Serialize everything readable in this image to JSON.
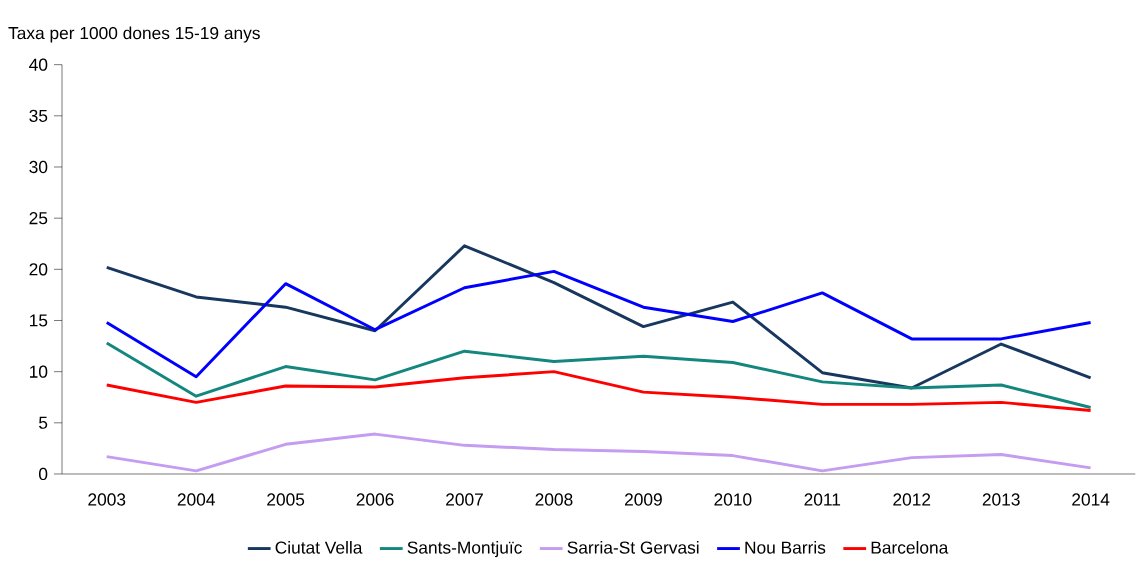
{
  "chart_data": {
    "type": "line",
    "ylabel": "Taxa per 1000 dones 15-19 anys",
    "categories": [
      "2003",
      "2004",
      "2005",
      "2006",
      "2007",
      "2008",
      "2009",
      "2010",
      "2011",
      "2012",
      "2013",
      "2014"
    ],
    "series": [
      {
        "name": "Ciutat Vella",
        "color": "#17375e",
        "values": [
          20.2,
          17.3,
          16.3,
          14.0,
          22.3,
          18.7,
          14.4,
          16.8,
          9.9,
          8.4,
          12.7,
          9.4
        ]
      },
      {
        "name": "Sants-Montjuïc",
        "color": "#13877e",
        "values": [
          12.8,
          7.6,
          10.5,
          9.2,
          12.0,
          11.0,
          11.5,
          10.9,
          9.0,
          8.4,
          8.7,
          6.5
        ]
      },
      {
        "name": "Sarria-St Gervasi",
        "color": "#c49cf0",
        "values": [
          1.7,
          0.3,
          2.9,
          3.9,
          2.8,
          2.4,
          2.2,
          1.8,
          0.3,
          1.6,
          1.9,
          0.6
        ]
      },
      {
        "name": "Nou Barris",
        "color": "#0000ff",
        "values": [
          14.8,
          9.5,
          18.6,
          14.1,
          18.2,
          19.8,
          16.3,
          14.9,
          17.7,
          13.2,
          13.2,
          14.8
        ]
      },
      {
        "name": "Barcelona",
        "color": "#ff0000",
        "values": [
          8.7,
          7.0,
          8.6,
          8.5,
          9.4,
          10.0,
          8.0,
          7.5,
          6.8,
          6.8,
          7.0,
          6.2
        ]
      }
    ],
    "ylim": [
      0,
      40
    ],
    "yticks": [
      0,
      5,
      10,
      15,
      20,
      25,
      30,
      35,
      40
    ],
    "legend": "bottom",
    "line_style": "solid"
  }
}
